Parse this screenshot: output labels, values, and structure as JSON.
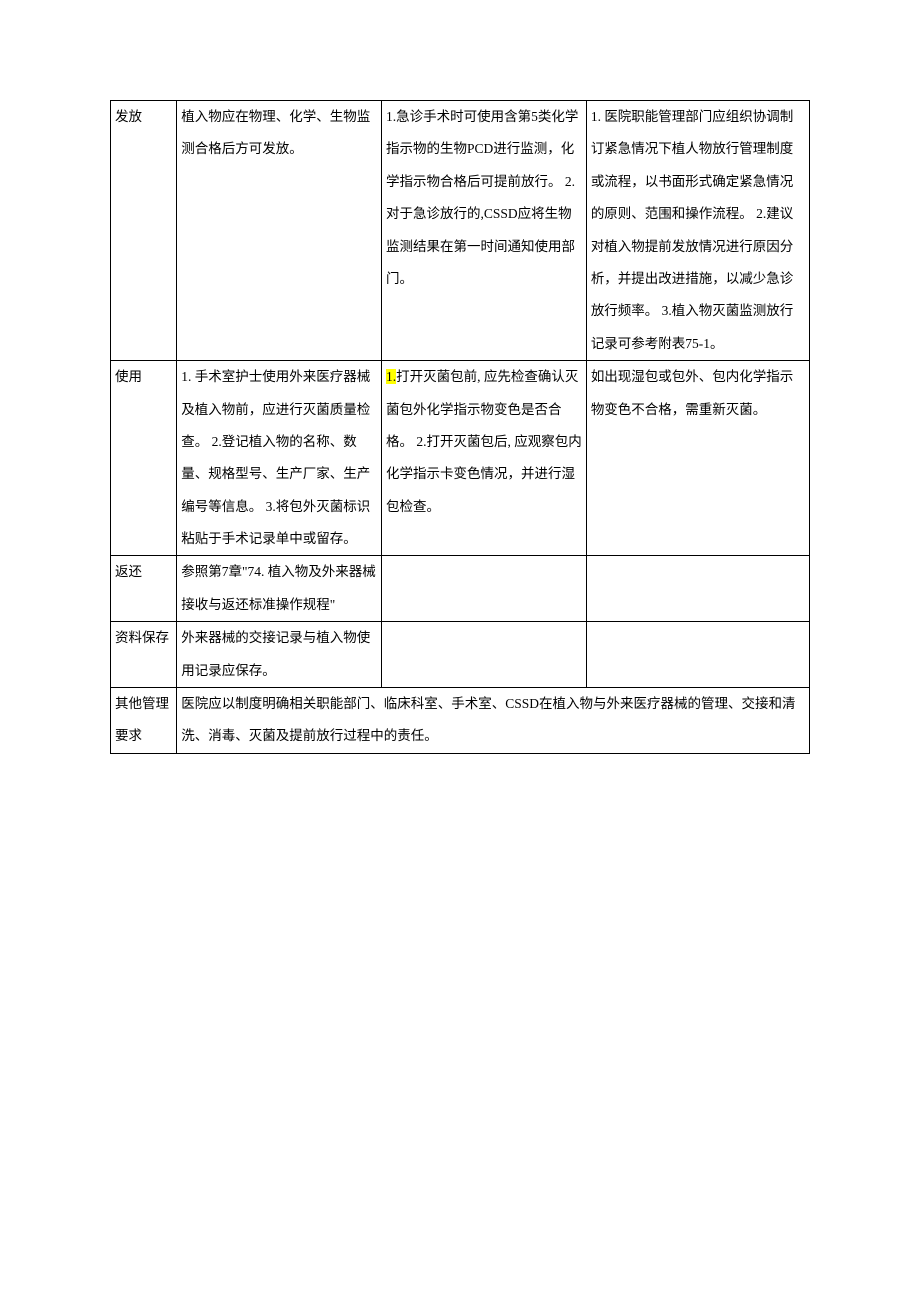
{
  "table": {
    "rows": [
      {
        "col1": "发放",
        "col2": "植入物应在物理、化学、生物监测合格后方可发放。",
        "col3": "1.急诊手术时可使用含第5类化学指示物的生物PCD进行监测，化学指示物合格后可提前放行。\n2. 对于急诊放行的,CSSD应将生物监测结果在第一时间通知使用部门。",
        "col4": "1. 医院职能管理部门应组织协调制订紧急情况下植人物放行管理制度或流程，以书面形式确定紧急情况的原则、范围和操作流程。\n2.建议对植入物提前发放情况进行原因分析，并提出改进措施，以减少急诊放行频率。\n3.植入物灭菌监测放行记录可参考附表75-1。"
      },
      {
        "col1": "使用",
        "col2": "1. 手术室护士使用外来医疗器械及植入物前，应进行灭菌质量检查。\n2.登记植入物的名称、数量、规格型号、生产厂家、生产编号等信息。\n3.将包外灭菌标识粘贴于手术记录单中或留存。",
        "col3_highlight": "1.",
        "col3_rest": "打开灭菌包前, 应先检查确认灭菌包外化学指示物变色是否合格。\n2.打开灭菌包后, 应观察包内化学指示卡变色情况，并进行湿包检查。",
        "col4": "如出现湿包或包外、包内化学指示物变色不合格，需重新灭菌。"
      },
      {
        "col1": "返还",
        "col2": "参照第7章\"74. 植入物及外来器械接收与返还标准操作规程\"",
        "col3": "",
        "col4": ""
      },
      {
        "col1": "资料保存",
        "col2": "外来器械的交接记录与植入物使用记录应保存。",
        "col3": "",
        "col4": ""
      },
      {
        "col1": "其他管理要求",
        "merged": "医院应以制度明确相关职能部门、临床科室、手术室、CSSD在植入物与外来医疗器械的管理、交接和清洗、消毒、灭菌及提前放行过程中的责任。"
      }
    ]
  }
}
